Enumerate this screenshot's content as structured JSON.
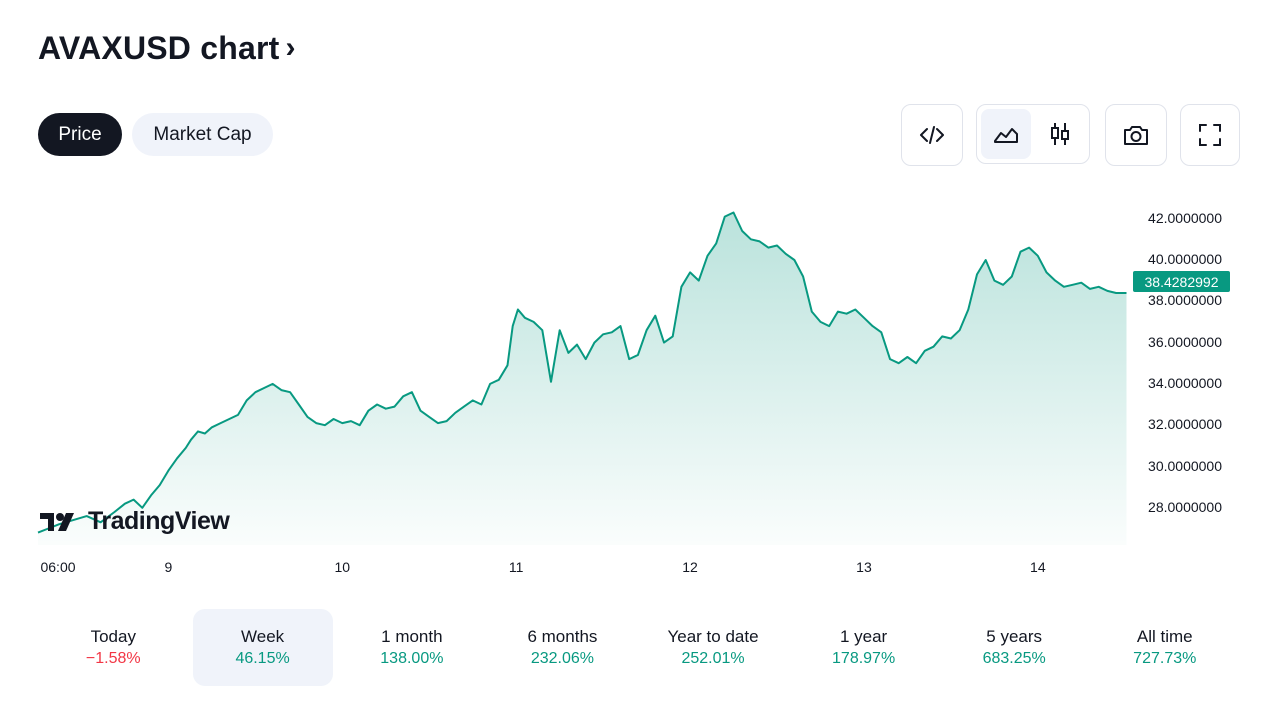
{
  "header": {
    "title": "AVAXUSD chart",
    "chevron": "›"
  },
  "tabs": [
    {
      "label": "Price",
      "active": true
    },
    {
      "label": "Market Cap",
      "active": false
    }
  ],
  "toolbar": {
    "embed_icon": "code-icon",
    "line_icon": "area-chart-icon",
    "candle_icon": "candlestick-icon",
    "snapshot_icon": "camera-icon",
    "fullscreen_icon": "fullscreen-icon"
  },
  "chart_data": {
    "type": "area",
    "symbol": "AVAXUSD",
    "last_price_label": "38.4282992",
    "y_ticks": [
      "42.0000000",
      "40.0000000",
      "38.0000000",
      "36.0000000",
      "34.0000000",
      "32.0000000",
      "30.0000000",
      "28.0000000"
    ],
    "ylim": [
      26.2,
      43.0
    ],
    "x_ticks": [
      "06:00",
      "9",
      "10",
      "11",
      "12",
      "13",
      "14"
    ],
    "x_tick_positions_days": [
      0,
      0.75,
      1.75,
      2.75,
      3.75,
      4.75,
      5.75
    ],
    "xlim_days": [
      0,
      6.28
    ],
    "series": [
      {
        "values_x_days": [
          0,
          0.06,
          0.12,
          0.2,
          0.28,
          0.36,
          0.44,
          0.5,
          0.55,
          0.6,
          0.65,
          0.7,
          0.75,
          0.8,
          0.85,
          0.88,
          0.92,
          0.96,
          1.0,
          1.05,
          1.1,
          1.15,
          1.2,
          1.25,
          1.3,
          1.35,
          1.4,
          1.45,
          1.5,
          1.55,
          1.6,
          1.65,
          1.7,
          1.75,
          1.8,
          1.85,
          1.9,
          1.95,
          2.0,
          2.05,
          2.1,
          2.15,
          2.2,
          2.25,
          2.3,
          2.35,
          2.4,
          2.45,
          2.5,
          2.55,
          2.6,
          2.65,
          2.7,
          2.73,
          2.76,
          2.8,
          2.85,
          2.9,
          2.95,
          3.0,
          3.05,
          3.1,
          3.15,
          3.2,
          3.25,
          3.3,
          3.35,
          3.4,
          3.45,
          3.5,
          3.55,
          3.6,
          3.65,
          3.7,
          3.75,
          3.8,
          3.85,
          3.9,
          3.95,
          4.0,
          4.05,
          4.1,
          4.15,
          4.2,
          4.25,
          4.3,
          4.35,
          4.4,
          4.45,
          4.5,
          4.55,
          4.6,
          4.65,
          4.7,
          4.75,
          4.8,
          4.85,
          4.9,
          4.95,
          5.0,
          5.05,
          5.1,
          5.15,
          5.2,
          5.25,
          5.3,
          5.35,
          5.4,
          5.45,
          5.5,
          5.55,
          5.6,
          5.65,
          5.7,
          5.75,
          5.8,
          5.85,
          5.9,
          5.95,
          6.0,
          6.05,
          6.1,
          6.15,
          6.2,
          6.26
        ],
        "values_y": [
          26.8,
          27.0,
          27.2,
          27.4,
          27.6,
          27.3,
          27.8,
          28.2,
          28.4,
          28.0,
          28.6,
          29.1,
          29.8,
          30.4,
          30.9,
          31.3,
          31.7,
          31.6,
          31.9,
          32.1,
          32.3,
          32.5,
          33.2,
          33.6,
          33.8,
          34.0,
          33.7,
          33.6,
          33.0,
          32.4,
          32.1,
          32.0,
          32.3,
          32.1,
          32.2,
          32.0,
          32.7,
          33.0,
          32.8,
          32.9,
          33.4,
          33.6,
          32.7,
          32.4,
          32.1,
          32.2,
          32.6,
          32.9,
          33.2,
          33.0,
          34.0,
          34.2,
          34.9,
          36.8,
          37.6,
          37.2,
          37.0,
          36.6,
          34.1,
          36.6,
          35.5,
          35.9,
          35.2,
          36.0,
          36.4,
          36.5,
          36.8,
          35.2,
          35.4,
          36.6,
          37.3,
          36.0,
          36.3,
          38.7,
          39.4,
          39.0,
          40.2,
          40.8,
          42.1,
          42.3,
          41.4,
          41.0,
          40.9,
          40.6,
          40.7,
          40.3,
          40.0,
          39.2,
          37.5,
          37.0,
          36.8,
          37.5,
          37.4,
          37.6,
          37.2,
          36.8,
          36.5,
          35.2,
          35.0,
          35.3,
          35.0,
          35.6,
          35.8,
          36.3,
          36.2,
          36.6,
          37.6,
          39.3,
          40.0,
          39.0,
          38.8,
          39.2,
          40.4,
          40.6,
          40.2,
          39.4,
          39.0,
          38.7,
          38.8,
          38.9,
          38.6,
          38.7,
          38.5,
          38.4,
          38.4
        ]
      }
    ]
  },
  "watermark": "TradingView",
  "periods": [
    {
      "label": "Today",
      "value": "−1.58%",
      "trend": "neg",
      "selected": false
    },
    {
      "label": "Week",
      "value": "46.15%",
      "trend": "pos",
      "selected": true
    },
    {
      "label": "1 month",
      "value": "138.00%",
      "trend": "pos",
      "selected": false
    },
    {
      "label": "6 months",
      "value": "232.06%",
      "trend": "pos",
      "selected": false
    },
    {
      "label": "Year to date",
      "value": "252.01%",
      "trend": "pos",
      "selected": false
    },
    {
      "label": "1 year",
      "value": "178.97%",
      "trend": "pos",
      "selected": false
    },
    {
      "label": "5 years",
      "value": "683.25%",
      "trend": "pos",
      "selected": false
    },
    {
      "label": "All time",
      "value": "727.73%",
      "trend": "pos",
      "selected": false
    }
  ],
  "colors": {
    "accent": "#089981",
    "negative": "#f23645",
    "dark": "#131722",
    "muted_bg": "#f0f3fa"
  }
}
